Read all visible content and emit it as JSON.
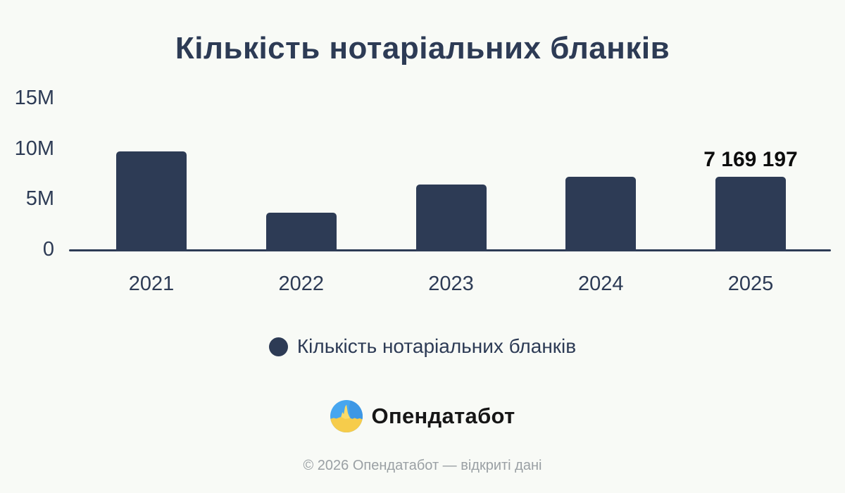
{
  "title": "Кількість нотаріальних бланків",
  "chart_data": {
    "type": "bar",
    "title": "Кількість нотаріальних бланків",
    "categories": [
      "2021",
      "2022",
      "2023",
      "2024",
      "2025"
    ],
    "values": [
      9700000,
      3600000,
      6400000,
      7200000,
      7169197
    ],
    "value_labels": [
      "",
      "",
      "",
      "",
      "7 169 197"
    ],
    "series_name": "Кількість нотаріальних бланків",
    "xlabel": "",
    "ylabel": "",
    "ylim": [
      0,
      15000000
    ],
    "yticks": [
      {
        "value": 0,
        "label": "0"
      },
      {
        "value": 5000000,
        "label": "5M"
      },
      {
        "value": 10000000,
        "label": "10M"
      },
      {
        "value": 15000000,
        "label": "15M"
      }
    ],
    "grid": false,
    "legend_position": "bottom"
  },
  "legend": {
    "label": "Кількість нотаріальних бланків",
    "marker": "circle"
  },
  "branding": {
    "logo_text": "Опендатабот",
    "logo_icon": "opendatabot-logo-icon"
  },
  "footer": {
    "text": "© 2026 Опендатабот — відкриті дані"
  },
  "colors": {
    "background": "#f8faf6",
    "bar": "#2d3b55",
    "title_text": "#2d3b55",
    "axis_text": "#2d3b55",
    "axis_line": "#2d3b55",
    "value_label_text": "#0d0d0d",
    "legend_text": "#2d3b55",
    "logo_text": "#161616",
    "footer_text": "#9aa0a4",
    "logo_blue": "#47a6ef",
    "logo_blue_dark": "#3d97e5",
    "logo_yellow": "#f6cc4b",
    "logo_yellow_light": "#fadc69"
  }
}
